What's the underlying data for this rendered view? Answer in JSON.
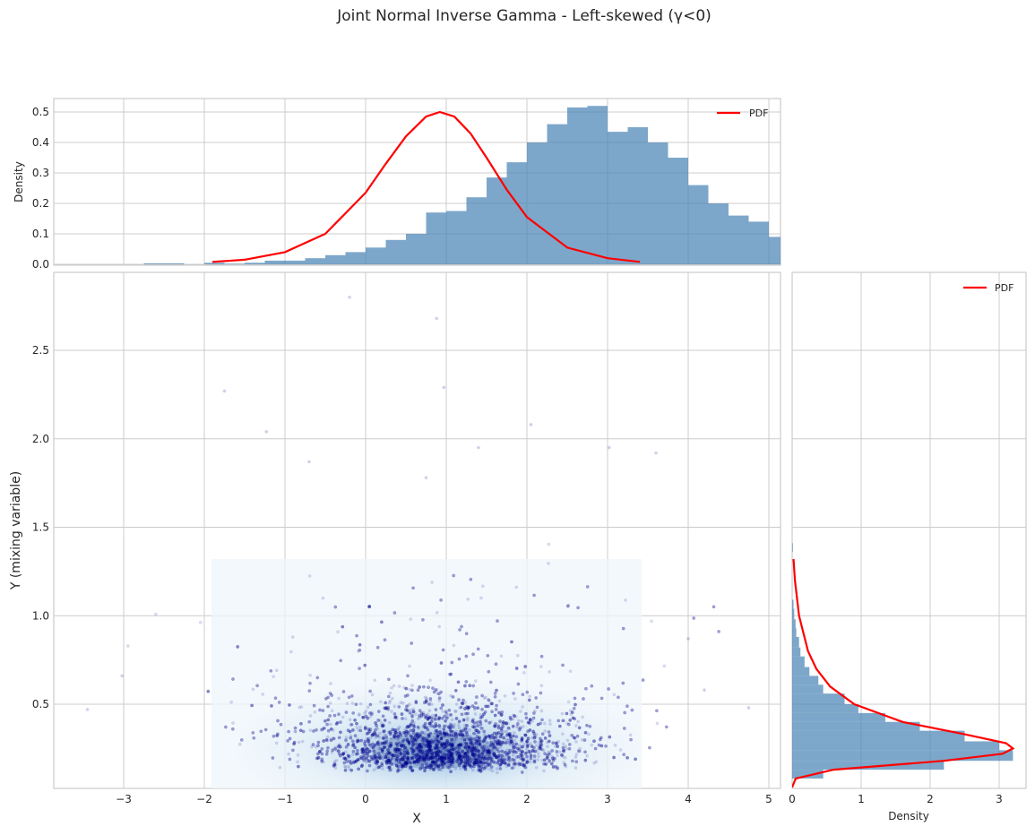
{
  "figure": {
    "title": "Joint Normal Inverse Gamma - Left-skewed (γ<0)",
    "colors": {
      "hist_fill": "#4682b4",
      "pdf_line": "#ff0000",
      "scatter_point": "#00008b",
      "kde_fill": "#deebf7",
      "grid": "#cccccc",
      "axes_edge": "#cccccc"
    }
  },
  "top_panel": {
    "ylabel": "Density",
    "yticks": [
      "0.0",
      "0.1",
      "0.2",
      "0.3",
      "0.4",
      "0.5"
    ],
    "legend": {
      "label": "PDF"
    }
  },
  "main_panel": {
    "xlabel": "X",
    "ylabel": "Y (mixing variable)",
    "xticks": [
      "−3",
      "−2",
      "−1",
      "0",
      "1",
      "2",
      "3",
      "4",
      "5"
    ],
    "yticks": [
      "0.5",
      "1.0",
      "1.5",
      "2.0",
      "2.5"
    ]
  },
  "right_panel": {
    "xlabel": "Density",
    "xticks": [
      "0",
      "1",
      "2",
      "3"
    ],
    "legend": {
      "label": "PDF"
    }
  },
  "chart_data": [
    {
      "type": "bar",
      "title": "Marginal of X (histogram + PDF)",
      "xlabel": "",
      "ylabel": "Density",
      "xlim": [
        -3.85,
        5.15
      ],
      "ylim": [
        0,
        0.545
      ],
      "grid": true,
      "legend": {
        "entries": [
          "PDF"
        ],
        "position": "upper right"
      },
      "bin_width": 0.25,
      "bin_edges_start": -2.75,
      "values": [
        0.003,
        0.003,
        0.0,
        0.005,
        0.002,
        0.005,
        0.012,
        0.012,
        0.02,
        0.03,
        0.04,
        0.055,
        0.08,
        0.1,
        0.17,
        0.175,
        0.22,
        0.285,
        0.335,
        0.4,
        0.46,
        0.515,
        0.52,
        0.435,
        0.45,
        0.4,
        0.35,
        0.26,
        0.2,
        0.16,
        0.14,
        0.09,
        0.07,
        0.045,
        0.03,
        0.02,
        0.015,
        0.012,
        0.015,
        0.008,
        0.003,
        0.0,
        0.0,
        0.003
      ],
      "series": [
        {
          "name": "PDF",
          "x": [
            -1.9,
            -1.5,
            -1.0,
            -0.5,
            0.0,
            0.25,
            0.5,
            0.75,
            0.92,
            1.1,
            1.3,
            1.5,
            1.75,
            2.0,
            2.5,
            3.0,
            3.4
          ],
          "y": [
            0.008,
            0.015,
            0.04,
            0.1,
            0.235,
            0.33,
            0.42,
            0.485,
            0.5,
            0.485,
            0.43,
            0.35,
            0.245,
            0.155,
            0.055,
            0.02,
            0.008
          ]
        }
      ]
    },
    {
      "type": "scatter",
      "title": "",
      "xlabel": "X",
      "ylabel": "Y (mixing variable)",
      "xlim": [
        -3.85,
        5.15
      ],
      "ylim": [
        0.03,
        2.95
      ],
      "grid": true,
      "notes": "Thousands of semi-transparent dark-blue points with light blue KDE contour fill; dense core near X≈0.9, Y≈0.25; KDE region spans X≈[-1.9,3.4], Y≈[0.03,1.32]",
      "sample_outliers": [
        {
          "x": -0.2,
          "y": 2.8
        },
        {
          "x": 0.88,
          "y": 2.68
        },
        {
          "x": -1.75,
          "y": 2.27
        },
        {
          "x": 0.97,
          "y": 2.29
        },
        {
          "x": 2.05,
          "y": 2.08
        },
        {
          "x": -1.23,
          "y": 2.04
        },
        {
          "x": 1.4,
          "y": 1.95
        },
        {
          "x": 3.02,
          "y": 1.95
        },
        {
          "x": 3.6,
          "y": 1.92
        },
        {
          "x": -0.7,
          "y": 1.87
        },
        {
          "x": 0.75,
          "y": 1.78
        },
        {
          "x": -3.45,
          "y": 0.47
        },
        {
          "x": -3.02,
          "y": 0.66
        },
        {
          "x": 4.75,
          "y": 0.48
        },
        {
          "x": 4.2,
          "y": 0.58
        },
        {
          "x": 4.0,
          "y": 0.87
        }
      ]
    },
    {
      "type": "bar",
      "orientation": "horizontal",
      "title": "Marginal of Y (histogram + PDF)",
      "xlabel": "Density",
      "ylabel": "",
      "xlim": [
        0,
        3.4
      ],
      "ylim": [
        0.03,
        2.95
      ],
      "grid": true,
      "legend": {
        "entries": [
          "PDF"
        ],
        "position": "upper right"
      },
      "bin_edges": [
        0.08,
        0.13,
        0.18,
        0.24,
        0.29,
        0.35,
        0.4,
        0.45,
        0.5,
        0.56,
        0.61,
        0.66,
        0.71,
        0.77,
        0.82,
        0.88,
        0.93,
        0.98,
        1.04,
        1.09,
        1.36,
        1.41
      ],
      "values": [
        0.45,
        2.2,
        3.2,
        3.0,
        2.5,
        1.85,
        1.35,
        0.96,
        0.76,
        0.45,
        0.38,
        0.25,
        0.18,
        0.12,
        0.1,
        0.06,
        0.05,
        0.03,
        0.02,
        0.0,
        0.01
      ],
      "series": [
        {
          "name": "PDF",
          "y": [
            0.03,
            0.08,
            0.13,
            0.18,
            0.22,
            0.25,
            0.28,
            0.33,
            0.4,
            0.5,
            0.6,
            0.7,
            0.8,
            1.0,
            1.2,
            1.32
          ],
          "x": [
            0.0,
            0.05,
            0.6,
            2.2,
            3.05,
            3.2,
            3.1,
            2.5,
            1.6,
            0.9,
            0.55,
            0.35,
            0.23,
            0.1,
            0.04,
            0.02
          ]
        }
      ]
    }
  ]
}
